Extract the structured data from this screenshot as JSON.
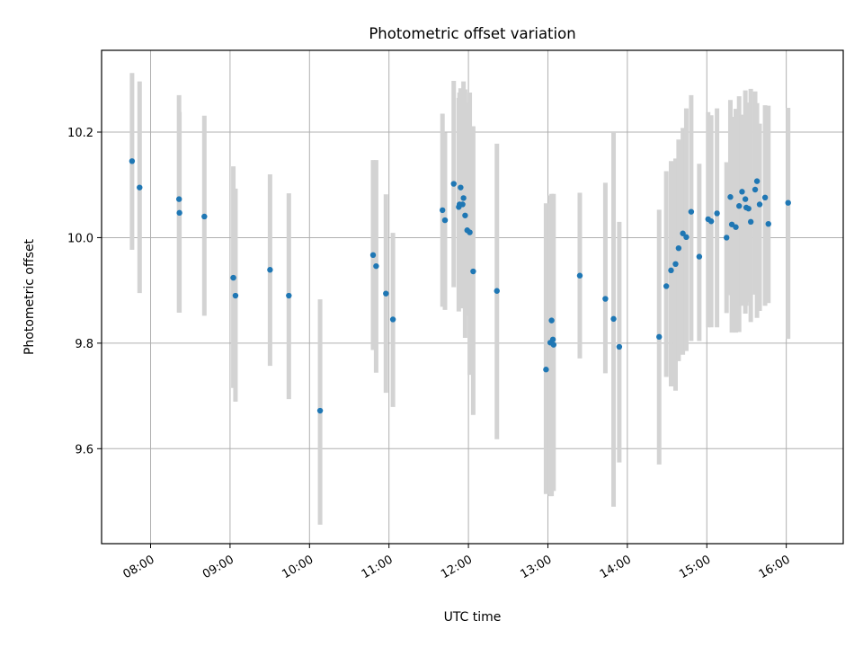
{
  "chart_data": {
    "type": "scatter",
    "title": "Photometric offset variation",
    "xlabel": "UTC time",
    "ylabel": "Photometric offset",
    "x_tick_labels": [
      "08:00",
      "09:00",
      "10:00",
      "11:00",
      "12:00",
      "13:00",
      "14:00",
      "15:00",
      "16:00"
    ],
    "y_tick_labels": [
      "9.6",
      "9.8",
      "10.0",
      "10.2"
    ],
    "x_ticks_minutes": [
      480,
      540,
      600,
      660,
      720,
      780,
      840,
      900,
      960
    ],
    "y_ticks": [
      9.6,
      9.8,
      10.0,
      10.2
    ],
    "xlim_minutes": [
      443,
      1003
    ],
    "ylim": [
      9.42,
      10.355
    ],
    "grid": true,
    "colors": {
      "point": "#1f77b4",
      "errorbar": "#d3d3d3",
      "grid": "#b0b0b0"
    },
    "series": [
      {
        "x_minutes": [
          466.0,
          471.7,
          501.5,
          501.8,
          520.6,
          542.5,
          544.1,
          570.2,
          584.4,
          608.0,
          648.0,
          650.3,
          657.7,
          663.0,
          700.4,
          702.3,
          708.9,
          712.7,
          713.3,
          714.1,
          715.6,
          716.3,
          717.5,
          719.1,
          721.0,
          723.6,
          741.5,
          778.6,
          781.8,
          782.8,
          783.8,
          784.3,
          804.1,
          823.4,
          829.6,
          833.9,
          864.0,
          869.4,
          873.0,
          876.4,
          878.7,
          881.9,
          884.5,
          888.2,
          894.3,
          901.0,
          903.3,
          907.7,
          914.9,
          917.8,
          918.9,
          921.9,
          924.4,
          926.6,
          929.1,
          929.8,
          931.5,
          933.2,
          936.5,
          937.9,
          939.9,
          944.0,
          946.5,
          961.4
        ],
        "y": [
          10.145,
          10.095,
          10.073,
          10.047,
          10.04,
          9.924,
          9.89,
          9.939,
          9.89,
          9.672,
          9.967,
          9.946,
          9.894,
          9.845,
          10.052,
          10.033,
          10.102,
          10.058,
          10.063,
          10.095,
          10.063,
          10.075,
          10.042,
          10.014,
          10.01,
          9.936,
          9.899,
          9.75,
          9.801,
          9.843,
          9.807,
          9.797,
          9.928,
          9.884,
          9.846,
          9.793,
          9.812,
          9.908,
          9.938,
          9.95,
          9.98,
          10.008,
          10.001,
          10.049,
          9.964,
          10.035,
          10.031,
          10.046,
          10.0,
          10.077,
          10.025,
          10.02,
          10.06,
          10.087,
          10.073,
          10.057,
          10.055,
          10.03,
          10.091,
          10.107,
          10.063,
          10.076,
          10.026,
          10.066
        ],
        "y_err_low": [
          9.977,
          9.895,
          9.858,
          9.858,
          9.852,
          9.715,
          9.689,
          9.757,
          9.694,
          9.456,
          9.787,
          9.744,
          9.706,
          9.679,
          9.869,
          9.863,
          9.906,
          9.86,
          9.881,
          9.87,
          9.866,
          9.869,
          9.81,
          9.852,
          9.74,
          9.664,
          9.618,
          9.514,
          9.51,
          9.51,
          9.52,
          9.52,
          9.771,
          9.743,
          9.49,
          9.574,
          9.57,
          9.736,
          9.718,
          9.71,
          9.766,
          9.778,
          9.785,
          9.804,
          9.804,
          9.83,
          9.83,
          9.83,
          9.857,
          9.891,
          9.82,
          9.82,
          9.821,
          9.871,
          9.856,
          9.871,
          9.878,
          9.84,
          9.892,
          9.848,
          9.861,
          9.871,
          9.876,
          9.808
        ],
        "y_err_high": [
          10.312,
          10.296,
          10.27,
          10.238,
          10.231,
          10.135,
          10.093,
          10.12,
          10.084,
          9.883,
          10.147,
          10.147,
          10.082,
          10.009,
          10.235,
          10.199,
          10.297,
          10.265,
          10.275,
          10.283,
          10.272,
          10.296,
          10.281,
          10.256,
          10.275,
          10.211,
          10.178,
          10.065,
          10.08,
          10.083,
          10.06,
          10.083,
          10.085,
          10.104,
          10.2,
          10.03,
          10.053,
          10.126,
          10.145,
          10.15,
          10.186,
          10.208,
          10.245,
          10.27,
          10.14,
          10.238,
          10.232,
          10.245,
          10.143,
          10.261,
          10.229,
          10.244,
          10.268,
          10.233,
          10.279,
          10.243,
          10.256,
          10.282,
          10.277,
          10.255,
          10.216,
          10.251,
          10.25,
          10.246
        ]
      }
    ]
  }
}
